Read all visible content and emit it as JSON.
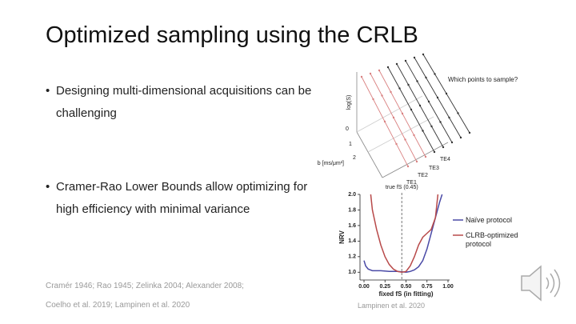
{
  "slide": {
    "title": "Optimized sampling using the CRLB",
    "bullets": [
      "Designing multi-dimensional acquisitions can be challenging",
      "Cramer-Rao Lower Bounds allow optimizing for high efficiency with minimal variance"
    ],
    "references": "Cramér 1946; Rao 1945; Zelinka 2004; Alexander 2008; Coelho et al. 2019; Lampinen et al. 2020",
    "figure_credit": "Lampinen et al. 2020"
  },
  "diagram": {
    "question": "Which points to sample?",
    "y_label": "log(S)",
    "x_label": "b [ms/μm²]",
    "b_ticks": [
      "0",
      "1",
      "2"
    ],
    "te_labels": [
      "TE1",
      "TE2",
      "TE3",
      "TE4"
    ]
  },
  "chart_data": {
    "type": "line",
    "y_label": "NRV",
    "x_label": "fixed fS (in fitting)",
    "annotation": "true fS (0.45)",
    "vline": 0.45,
    "xlim": [
      0,
      1
    ],
    "ylim": [
      0.9,
      2.0
    ],
    "xticks": [
      {
        "value": 0,
        "label": "0.00"
      },
      0.25,
      {
        "value": 0.5,
        "label": "0.50"
      },
      0.75,
      {
        "value": 1,
        "label": "1.00"
      }
    ],
    "yticks": [
      {
        "value": 1,
        "label": "1.0"
      },
      1.2,
      1.4,
      1.6,
      1.8,
      {
        "value": 2,
        "label": "2.0"
      }
    ],
    "series": [
      {
        "name": "Naïve protocol",
        "color": "#4a4aa6",
        "x": [
          0,
          0.02,
          0.05,
          0.1,
          0.2,
          0.3,
          0.4,
          0.5,
          0.55,
          0.6,
          0.65,
          0.7,
          0.75,
          0.8,
          0.85,
          0.9,
          0.93
        ],
        "values": [
          1.15,
          1.08,
          1.04,
          1.02,
          1.02,
          1.01,
          1.01,
          1.0,
          1.01,
          1.03,
          1.07,
          1.15,
          1.3,
          1.5,
          1.7,
          1.9,
          2.0
        ]
      },
      {
        "name": "CLRB-optimized protocol",
        "color": "#b84a4a",
        "x": [
          0.08,
          0.1,
          0.15,
          0.2,
          0.25,
          0.3,
          0.35,
          0.4,
          0.45,
          0.5,
          0.55,
          0.6,
          0.65,
          0.7,
          0.75,
          0.8,
          0.85,
          0.88
        ],
        "values": [
          2.0,
          1.8,
          1.55,
          1.35,
          1.2,
          1.1,
          1.04,
          1.01,
          1.0,
          1.01,
          1.08,
          1.2,
          1.35,
          1.45,
          1.5,
          1.55,
          1.7,
          2.0
        ]
      }
    ]
  }
}
